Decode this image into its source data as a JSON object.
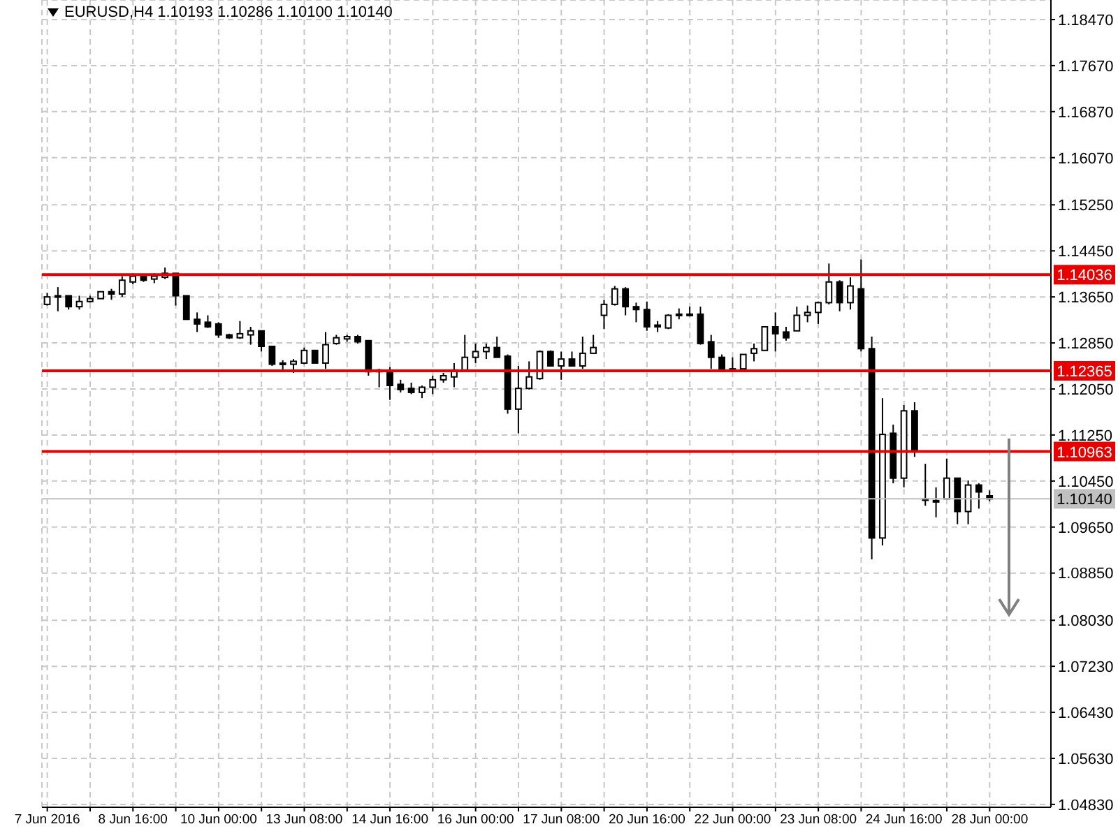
{
  "chart_data": {
    "type": "candlestick",
    "title": "EURUSD,H4  1.10193 1.10286 1.10100 1.10140",
    "categories": [
      "7 Jun 2016",
      null,
      null,
      null,
      null,
      null,
      null,
      null,
      "8 Jun 16:00",
      null,
      null,
      null,
      null,
      null,
      null,
      null,
      "10 Jun 00:00",
      null,
      null,
      null,
      null,
      null,
      null,
      null,
      "13 Jun 08:00",
      null,
      null,
      null,
      null,
      null,
      null,
      null,
      "14 Jun 16:00",
      null,
      null,
      null,
      null,
      null,
      null,
      null,
      "16 Jun 00:00",
      null,
      null,
      null,
      null,
      null,
      null,
      null,
      "17 Jun 08:00",
      null,
      null,
      null,
      null,
      null,
      null,
      null,
      "20 Jun 16:00",
      null,
      null,
      null,
      null,
      null,
      null,
      null,
      "22 Jun 00:00",
      null,
      null,
      null,
      null,
      null,
      null,
      null,
      "23 Jun 08:00",
      null,
      null,
      null,
      null,
      null,
      null,
      null,
      "24 Jun 16:00",
      null,
      null,
      null,
      null,
      null,
      null,
      null,
      "28 Jun 00:00"
    ],
    "ohlc": [
      [
        1.1352,
        1.1372,
        1.135,
        1.1365
      ],
      [
        1.1367,
        1.1382,
        1.134,
        1.1365
      ],
      [
        1.1367,
        1.1367,
        1.1343,
        1.1348
      ],
      [
        1.1348,
        1.1367,
        1.1343,
        1.1357
      ],
      [
        1.1357,
        1.1367,
        1.1355,
        1.1362
      ],
      [
        1.1362,
        1.1374,
        1.1362,
        1.1374
      ],
      [
        1.1374,
        1.1379,
        1.136,
        1.137
      ],
      [
        1.137,
        1.1401,
        1.1365,
        1.1394
      ],
      [
        1.1391,
        1.1406,
        1.1387,
        1.1401
      ],
      [
        1.1401,
        1.1404,
        1.1391,
        1.1394
      ],
      [
        1.1396,
        1.1406,
        1.1389,
        1.1401
      ],
      [
        1.1399,
        1.1416,
        1.1396,
        1.1406
      ],
      [
        1.1406,
        1.1406,
        1.135,
        1.1367
      ],
      [
        1.1367,
        1.1367,
        1.1326,
        1.1326
      ],
      [
        1.1326,
        1.1338,
        1.1304,
        1.1318
      ],
      [
        1.1321,
        1.1333,
        1.1311,
        1.1313
      ],
      [
        1.1318,
        1.1321,
        1.1294,
        1.1299
      ],
      [
        1.1299,
        1.1301,
        1.1292,
        1.1294
      ],
      [
        1.1294,
        1.1323,
        1.1292,
        1.1301
      ],
      [
        1.1299,
        1.1313,
        1.1282,
        1.1306
      ],
      [
        1.1306,
        1.1306,
        1.127,
        1.1279
      ],
      [
        1.1279,
        1.1279,
        1.1245,
        1.1248
      ],
      [
        1.125,
        1.1255,
        1.1235,
        1.1248
      ],
      [
        1.1248,
        1.1257,
        1.1233,
        1.1253
      ],
      [
        1.125,
        1.1277,
        1.1248,
        1.1272
      ],
      [
        1.1272,
        1.1272,
        1.125,
        1.125
      ],
      [
        1.125,
        1.1304,
        1.124,
        1.1282
      ],
      [
        1.1284,
        1.1299,
        1.1282,
        1.1294
      ],
      [
        1.1292,
        1.1299,
        1.1287,
        1.1296
      ],
      [
        1.1296,
        1.1299,
        1.1284,
        1.1287
      ],
      [
        1.1289,
        1.1289,
        1.1228,
        1.1235
      ],
      [
        1.1238,
        1.124,
        1.1208,
        1.1235
      ],
      [
        1.1235,
        1.1243,
        1.1186,
        1.1211
      ],
      [
        1.1213,
        1.1221,
        1.1199,
        1.1204
      ],
      [
        1.1206,
        1.1216,
        1.1196,
        1.1199
      ],
      [
        1.1199,
        1.1211,
        1.1189,
        1.1208
      ],
      [
        1.1208,
        1.1228,
        1.1196,
        1.1221
      ],
      [
        1.1221,
        1.1233,
        1.1216,
        1.1228
      ],
      [
        1.1226,
        1.125,
        1.1208,
        1.1238
      ],
      [
        1.1238,
        1.1299,
        1.1235,
        1.126
      ],
      [
        1.126,
        1.1284,
        1.125,
        1.127
      ],
      [
        1.127,
        1.1284,
        1.1257,
        1.1277
      ],
      [
        1.1277,
        1.1296,
        1.126,
        1.126
      ],
      [
        1.1262,
        1.1265,
        1.1162,
        1.117
      ],
      [
        1.117,
        1.1245,
        1.1128,
        1.1206
      ],
      [
        1.1206,
        1.1253,
        1.1204,
        1.1226
      ],
      [
        1.1223,
        1.1272,
        1.1221,
        1.127
      ],
      [
        1.127,
        1.1272,
        1.1245,
        1.1245
      ],
      [
        1.1245,
        1.127,
        1.1221,
        1.1257
      ],
      [
        1.1257,
        1.127,
        1.1245,
        1.1245
      ],
      [
        1.1245,
        1.1296,
        1.124,
        1.1267
      ],
      [
        1.1267,
        1.1299,
        1.1267,
        1.1277
      ],
      [
        1.1333,
        1.136,
        1.1309,
        1.1352
      ],
      [
        1.1352,
        1.1384,
        1.135,
        1.1379
      ],
      [
        1.1379,
        1.1382,
        1.1333,
        1.1348
      ],
      [
        1.1348,
        1.1355,
        1.1321,
        1.1343
      ],
      [
        1.1343,
        1.1357,
        1.1306,
        1.1313
      ],
      [
        1.1316,
        1.1323,
        1.1304,
        1.1313
      ],
      [
        1.1311,
        1.1335,
        1.1309,
        1.1333
      ],
      [
        1.1335,
        1.1345,
        1.1326,
        1.1333
      ],
      [
        1.1335,
        1.1348,
        1.1331,
        1.1335
      ],
      [
        1.1335,
        1.1348,
        1.1282,
        1.1284
      ],
      [
        1.1287,
        1.1299,
        1.124,
        1.126
      ],
      [
        1.126,
        1.1265,
        1.1238,
        1.124
      ],
      [
        1.124,
        1.126,
        1.1238,
        1.124
      ],
      [
        1.124,
        1.1265,
        1.124,
        1.1265
      ],
      [
        1.1267,
        1.1284,
        1.1253,
        1.1275
      ],
      [
        1.1272,
        1.1313,
        1.1272,
        1.1313
      ],
      [
        1.1313,
        1.1338,
        1.127,
        1.1301
      ],
      [
        1.1304,
        1.1313,
        1.1289,
        1.1294
      ],
      [
        1.1306,
        1.1348,
        1.1306,
        1.1333
      ],
      [
        1.1333,
        1.135,
        1.1321,
        1.1338
      ],
      [
        1.1338,
        1.1357,
        1.1318,
        1.1355
      ],
      [
        1.1355,
        1.1423,
        1.1352,
        1.1391
      ],
      [
        1.1391,
        1.1394,
        1.134,
        1.1355
      ],
      [
        1.1355,
        1.1399,
        1.1343,
        1.1384
      ],
      [
        1.1379,
        1.143,
        1.127,
        1.1275
      ],
      [
        1.1275,
        1.1296,
        1.0909,
        1.0946
      ],
      [
        1.0946,
        1.1189,
        1.0933,
        1.1126
      ],
      [
        1.1128,
        1.1143,
        1.1041,
        1.105
      ],
      [
        1.105,
        1.1177,
        1.1034,
        1.1167
      ],
      [
        1.1167,
        1.1182,
        1.1087,
        1.1099
      ],
      [
        1.1014,
        1.1075,
        1.1002,
        1.1014
      ],
      [
        1.1011,
        1.1034,
        1.0982,
        1.1011
      ],
      [
        1.1014,
        1.1084,
        1.1014,
        1.105
      ],
      [
        1.105,
        1.105,
        1.097,
        1.0992
      ],
      [
        1.0992,
        1.1046,
        1.097,
        1.1038
      ],
      [
        1.1038,
        1.1041,
        1.0997,
        1.1026
      ],
      [
        1.10193,
        1.10286,
        1.101,
        1.1014
      ]
    ],
    "ylim": [
      1.0478,
      1.1881
    ],
    "yticks": [
      {
        "value": 1.0483,
        "label": "1.04830"
      },
      {
        "value": 1.0563,
        "label": "1.05630"
      },
      {
        "value": 1.0643,
        "label": "1.06430"
      },
      {
        "value": 1.0723,
        "label": "1.07230"
      },
      {
        "value": 1.0803,
        "label": "1.08030"
      },
      {
        "value": 1.0885,
        "label": "1.08850"
      },
      {
        "value": 1.0965,
        "label": "1.09650"
      },
      {
        "value": 1.1045,
        "label": "1.10450"
      },
      {
        "value": 1.1125,
        "label": "1.11250"
      },
      {
        "value": 1.1205,
        "label": "1.12050"
      },
      {
        "value": 1.1285,
        "label": "1.12850"
      },
      {
        "value": 1.1365,
        "label": "1.13650"
      },
      {
        "value": 1.1445,
        "label": "1.14450"
      },
      {
        "value": 1.1525,
        "label": "1.15250"
      },
      {
        "value": 1.1607,
        "label": "1.16070"
      },
      {
        "value": 1.1687,
        "label": "1.16870"
      },
      {
        "value": 1.1767,
        "label": "1.17670"
      },
      {
        "value": 1.1847,
        "label": "1.18470"
      }
    ],
    "ref_lines": [
      {
        "axis": "y",
        "value": 1.14036,
        "label": "1.14036",
        "color": "#e60000"
      },
      {
        "axis": "y",
        "value": 1.12365,
        "label": "1.12365",
        "color": "#e60000"
      },
      {
        "axis": "y",
        "value": 1.10963,
        "label": "1.10963",
        "color": "#e60000"
      },
      {
        "axis": "y",
        "value": 1.1014,
        "label": "1.10140",
        "color": "#c0c0c0"
      }
    ],
    "grid": true
  }
}
